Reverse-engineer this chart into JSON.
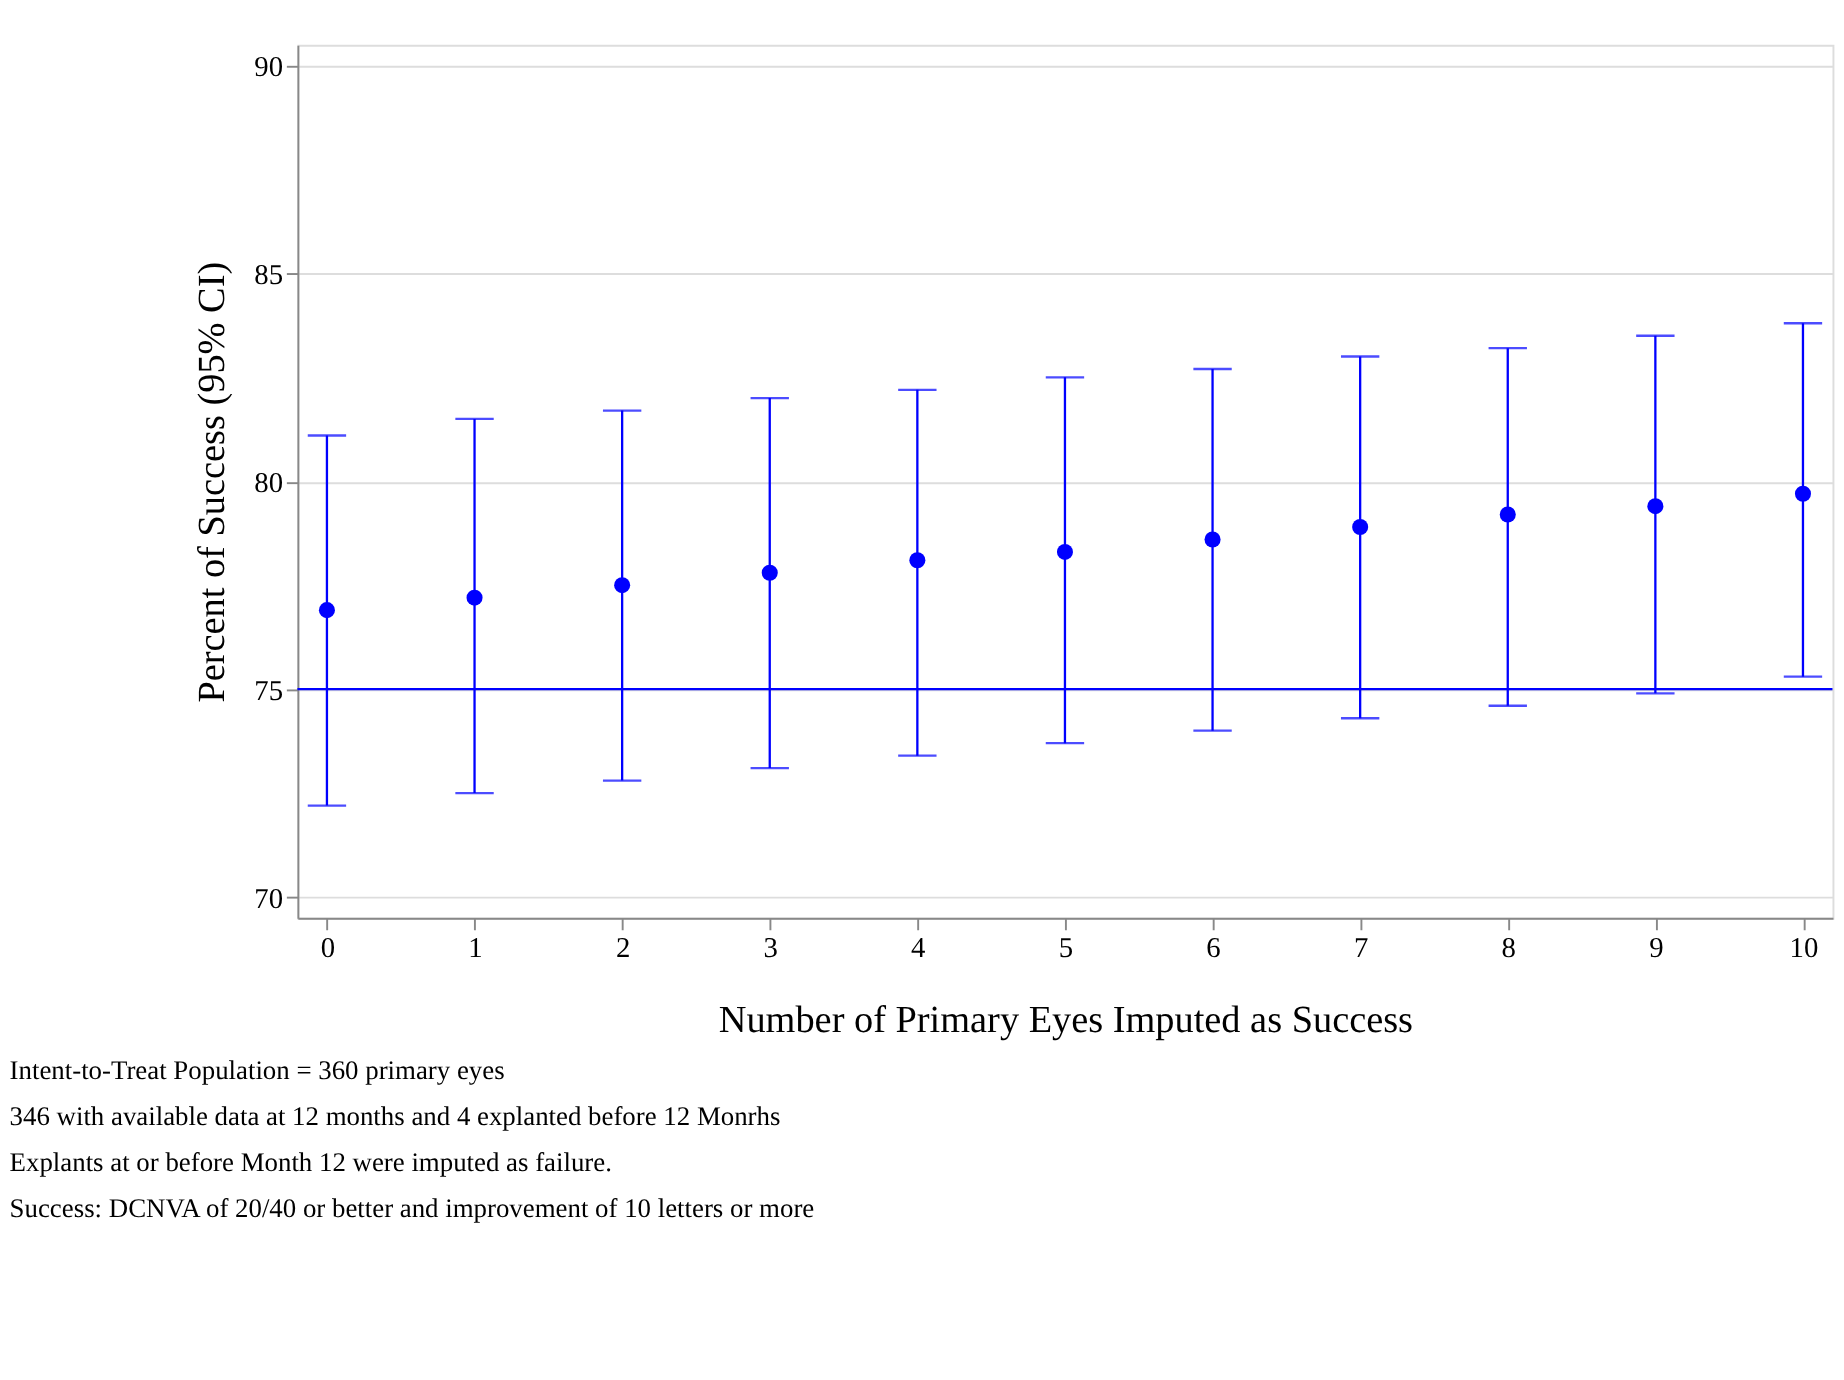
{
  "chart_data": {
    "type": "scatter",
    "xlabel": "Number of Primary Eyes Imputed as Success",
    "ylabel": "Percent of Success (95% CI)",
    "x": [
      0,
      1,
      2,
      3,
      4,
      5,
      6,
      7,
      8,
      9,
      10
    ],
    "series": [
      {
        "color": "#0000ff",
        "values": [
          76.9,
          77.2,
          77.5,
          77.8,
          78.1,
          78.3,
          78.6,
          78.9,
          79.2,
          79.4,
          79.7
        ],
        "errors": [
          [
            72.2,
            81.1
          ],
          [
            72.5,
            81.5
          ],
          [
            72.8,
            81.7
          ],
          [
            73.1,
            82.0
          ],
          [
            73.4,
            82.2
          ],
          [
            73.7,
            82.5
          ],
          [
            74.0,
            82.7
          ],
          [
            74.3,
            83.0
          ],
          [
            74.6,
            83.2
          ],
          [
            74.9,
            83.5
          ],
          [
            75.3,
            83.8
          ]
        ]
      }
    ],
    "xlim": [
      -0.2,
      10.2
    ],
    "xticks": [
      0,
      1,
      2,
      3,
      4,
      5,
      6,
      7,
      8,
      9,
      10
    ],
    "ylim": [
      69.5,
      90.5
    ],
    "yticks": [
      70,
      75,
      80,
      85,
      90
    ],
    "grid": "y",
    "marker": "circle",
    "ref_lines": [
      {
        "axis": "y",
        "value": 75,
        "color": "#0000ff"
      }
    ],
    "annotations": [
      "Intent-to-Treat Population = 360 primary eyes",
      "346 with available data at 12 months and 4 explanted before 12 Monrhs",
      "Explants at or before Month 12 were imputed as failure.",
      "Success: DCNVA of 20/40 or better and improvement of 10 letters or more"
    ]
  }
}
